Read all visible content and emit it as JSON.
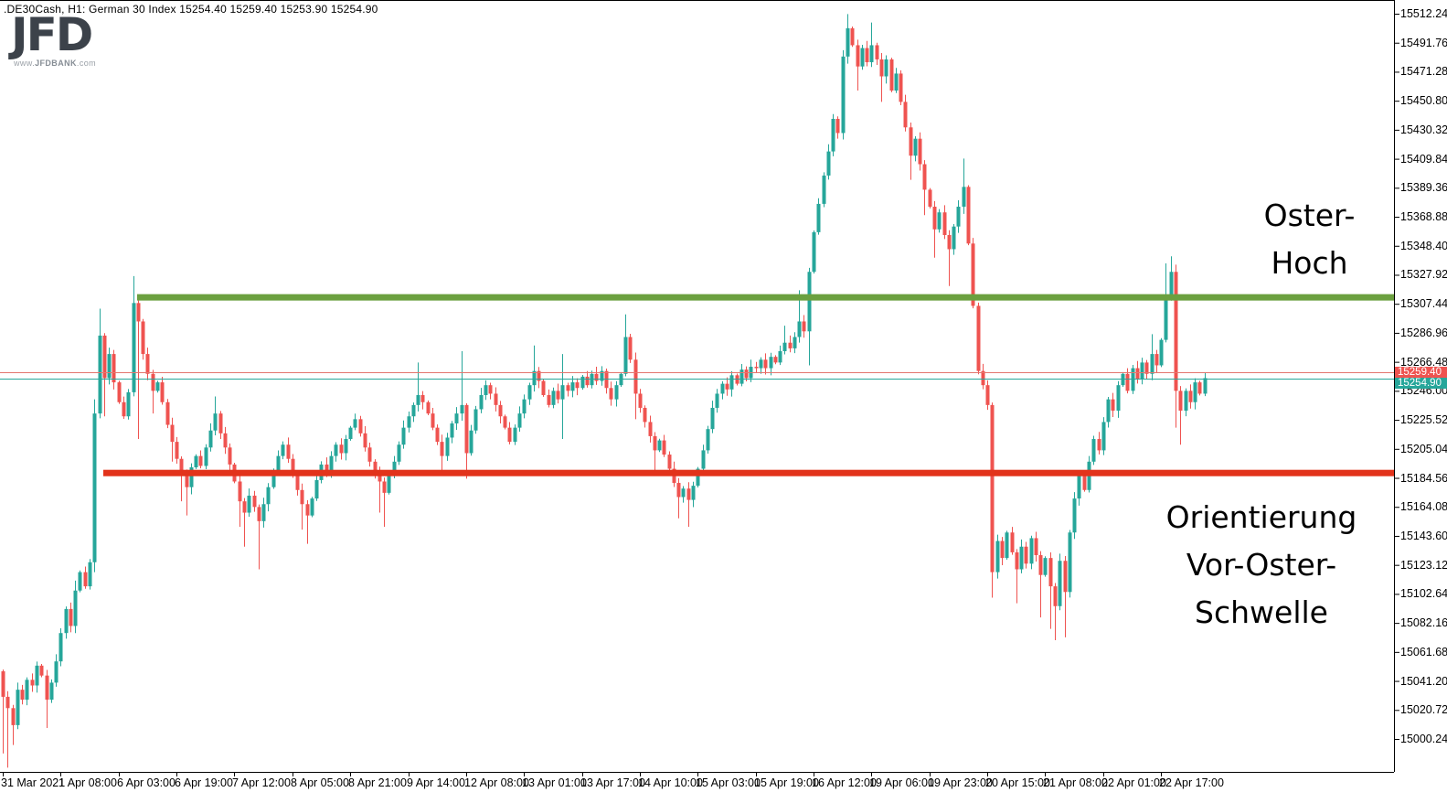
{
  "header": {
    "text": ".DE30Cash, H1:  German 30 Index  15254.40 15259.40 15253.90 15254.90"
  },
  "logo": {
    "name": "JFD",
    "website_www": "www.",
    "website_main": "JFDBANK",
    "website_tld": ".com"
  },
  "annotations": [
    {
      "name": "oster-hoch",
      "lines": [
        "Oster-",
        "Hoch"
      ]
    },
    {
      "name": "vor-oster-schwelle",
      "lines": [
        "Orientierung",
        "Vor-Oster-",
        "Schwelle"
      ]
    }
  ],
  "chart_data": {
    "type": "candlestick",
    "symbol": ".DE30Cash",
    "timeframe": "H1",
    "description": "German 30 Index",
    "quote": {
      "open": "15254.40",
      "high": "15259.40",
      "low": "15253.90",
      "close": "15254.90"
    },
    "colors": {
      "bull": "#26a69a",
      "bear": "#ef5350",
      "axis": "#000000",
      "background": "#ffffff"
    },
    "ylim": [
      14977,
      15522
    ],
    "grid": false,
    "price_axis": {
      "top_value": 15512.24,
      "step": 20.48,
      "labels": [
        "15512.24",
        "15491.76",
        "15471.28",
        "15450.80",
        "15430.32",
        "15409.84",
        "15389.36",
        "15368.88",
        "15348.40",
        "15327.92",
        "15307.44",
        "15286.96",
        "15266.48",
        "15246.00",
        "15225.52",
        "15205.04",
        "15184.56",
        "15164.08",
        "15143.60",
        "15123.12",
        "15102.64",
        "15082.16",
        "15061.68",
        "15041.20",
        "15020.72",
        "15000.24"
      ]
    },
    "time_axis": {
      "labels": [
        {
          "index": 0,
          "text": "31 Mar 2021"
        },
        {
          "index": 12,
          "text": "1 Apr 08:00"
        },
        {
          "index": 24,
          "text": "6 Apr 03:00"
        },
        {
          "index": 36,
          "text": "6 Apr 19:00"
        },
        {
          "index": 48,
          "text": "7 Apr 12:00"
        },
        {
          "index": 60,
          "text": "8 Apr 05:00"
        },
        {
          "index": 72,
          "text": "8 Apr 21:00"
        },
        {
          "index": 84,
          "text": "9 Apr 14:00"
        },
        {
          "index": 96,
          "text": "12 Apr 08:00"
        },
        {
          "index": 108,
          "text": "13 Apr 01:00"
        },
        {
          "index": 120,
          "text": "13 Apr 17:00"
        },
        {
          "index": 132,
          "text": "14 Apr 10:00"
        },
        {
          "index": 144,
          "text": "15 Apr 03:00"
        },
        {
          "index": 156,
          "text": "15 Apr 19:00"
        },
        {
          "index": 168,
          "text": "16 Apr 12:00"
        },
        {
          "index": 180,
          "text": "19 Apr 06:00"
        },
        {
          "index": 192,
          "text": "19 Apr 23:00"
        },
        {
          "index": 204,
          "text": "20 Apr 15:00"
        },
        {
          "index": 216,
          "text": "21 Apr 08:00"
        },
        {
          "index": 228,
          "text": "22 Apr 01:00"
        },
        {
          "index": 240,
          "text": "22 Apr 17:00"
        }
      ]
    },
    "levels": [
      {
        "name": "oster-hoch-level",
        "label": "Oster-Hoch",
        "price": 15312,
        "x_start": 150,
        "color": "#6ba03f"
      },
      {
        "name": "vor-oster-schwelle-level",
        "label": "Orientierung Vor-Oster-Schwelle",
        "price": 15188,
        "x_start": 113,
        "color": "#e2331b"
      }
    ],
    "price_lines": [
      {
        "label": "15259.40",
        "price": 15259.4,
        "line_color": "#e4776f",
        "badge_color": "#ef5350"
      },
      {
        "label": "15254.90",
        "price": 15254.9,
        "line_color": "#26a69a",
        "badge_color": "#26a69a"
      }
    ],
    "first_open": 15048,
    "closes": [
      15030,
      15022,
      15010,
      15035,
      15028,
      15042,
      15038,
      15052,
      15045,
      15028,
      15040,
      15055,
      15075,
      15092,
      15080,
      15105,
      15118,
      15108,
      15125,
      15230,
      15285,
      15255,
      15272,
      15252,
      15238,
      15228,
      15245,
      15308,
      15295,
      15272,
      15258,
      15246,
      15252,
      15238,
      15222,
      15210,
      15198,
      15186,
      15178,
      15192,
      15200,
      15193,
      15206,
      15218,
      15230,
      15216,
      15206,
      15194,
      15182,
      15168,
      15160,
      15172,
      15164,
      15154,
      15166,
      15178,
      15190,
      15200,
      15208,
      15198,
      15188,
      15176,
      15166,
      15158,
      15170,
      15183,
      15194,
      15188,
      15200,
      15208,
      15202,
      15212,
      15220,
      15226,
      15216,
      15206,
      15196,
      15188,
      15182,
      15174,
      15186,
      15196,
      15208,
      15220,
      15228,
      15236,
      15243,
      15238,
      15230,
      15220,
      15210,
      15200,
      15213,
      15223,
      15230,
      15236,
      15202,
      15218,
      15233,
      15243,
      15250,
      15244,
      15236,
      15228,
      15220,
      15210,
      15220,
      15230,
      15240,
      15250,
      15260,
      15253,
      15243,
      15236,
      15246,
      15240,
      15250,
      15246,
      15252,
      15248,
      15256,
      15250,
      15258,
      15253,
      15260,
      15248,
      15240,
      15250,
      15258,
      15284,
      15268,
      15244,
      15234,
      15224,
      15214,
      15204,
      15211,
      15201,
      15191,
      15181,
      15171,
      15177,
      15169,
      15179,
      15191,
      15204,
      15219,
      15234,
      15244,
      15251,
      15247,
      15257,
      15251,
      15261,
      15255,
      15263,
      15262,
      15268,
      15262,
      15270,
      15266,
      15274,
      15280,
      15276,
      15284,
      15295,
      15288,
      15330,
      15358,
      15378,
      15398,
      15415,
      15438,
      15428,
      15482,
      15502,
      15490,
      15475,
      15488,
      15478,
      15490,
      15480,
      15468,
      15480,
      15458,
      15470,
      15450,
      15432,
      15412,
      15424,
      15406,
      15388,
      15376,
      15360,
      15372,
      15356,
      15346,
      15362,
      15376,
      15390,
      15350,
      15306,
      15260,
      15250,
      15236,
      15118,
      15140,
      15128,
      15146,
      15132,
      15120,
      15136,
      15124,
      15142,
      15130,
      15116,
      15128,
      15108,
      15094,
      15126,
      15104,
      15146,
      15170,
      15186,
      15176,
      15196,
      15212,
      15204,
      15224,
      15240,
      15232,
      15250,
      15258,
      15246,
      15262,
      15254,
      15266,
      15258,
      15272,
      15264,
      15282,
      15312,
      15330,
      15246,
      15232,
      15246,
      15238,
      15252,
      15244,
      15255
    ],
    "wick_overrides": {
      "0": [
        null,
        14990
      ],
      "1": [
        null,
        14980
      ],
      "2": [
        null,
        14996
      ],
      "9": [
        null,
        15008
      ],
      "15": [
        15112,
        null
      ],
      "19": [
        15240,
        15118
      ],
      "20": [
        15304,
        null
      ],
      "21": [
        null,
        15228
      ],
      "27": [
        15327,
        null
      ],
      "28": [
        null,
        15212
      ],
      "31": [
        null,
        15230
      ],
      "35": [
        null,
        15196
      ],
      "37": [
        null,
        15168
      ],
      "38": [
        null,
        15158
      ],
      "44": [
        15242,
        null
      ],
      "49": [
        null,
        15150
      ],
      "50": [
        null,
        15136
      ],
      "53": [
        null,
        15120
      ],
      "62": [
        null,
        15148
      ],
      "63": [
        null,
        15138
      ],
      "78": [
        null,
        15160
      ],
      "79": [
        null,
        15150
      ],
      "86": [
        15266,
        null
      ],
      "91": [
        null,
        15186
      ],
      "95": [
        15274,
        null
      ],
      "96": [
        null,
        15184
      ],
      "110": [
        15278,
        null
      ],
      "116": [
        15272,
        15212
      ],
      "129": [
        15300,
        null
      ],
      "131": [
        null,
        15226
      ],
      "135": [
        null,
        15188
      ],
      "140": [
        null,
        15156
      ],
      "142": [
        null,
        15150
      ],
      "162": [
        15292,
        null
      ],
      "165": [
        15317,
        null
      ],
      "167": [
        null,
        15264
      ],
      "175": [
        15512,
        null
      ],
      "177": [
        null,
        15458
      ],
      "180": [
        15506,
        null
      ],
      "182": [
        null,
        15450
      ],
      "188": [
        null,
        15395
      ],
      "191": [
        null,
        15370
      ],
      "193": [
        null,
        15340
      ],
      "196": [
        null,
        15320
      ],
      "199": [
        15410,
        null
      ],
      "205": [
        null,
        15100
      ],
      "210": [
        null,
        15096
      ],
      "215": [
        null,
        15086
      ],
      "217": [
        null,
        15078
      ],
      "218": [
        null,
        15070
      ],
      "220": [
        null,
        15072
      ],
      "238": [
        15286,
        null
      ],
      "241": [
        15336,
        null
      ],
      "242": [
        15341,
        null
      ],
      "243": [
        null,
        15220
      ],
      "244": [
        null,
        15208
      ]
    }
  }
}
